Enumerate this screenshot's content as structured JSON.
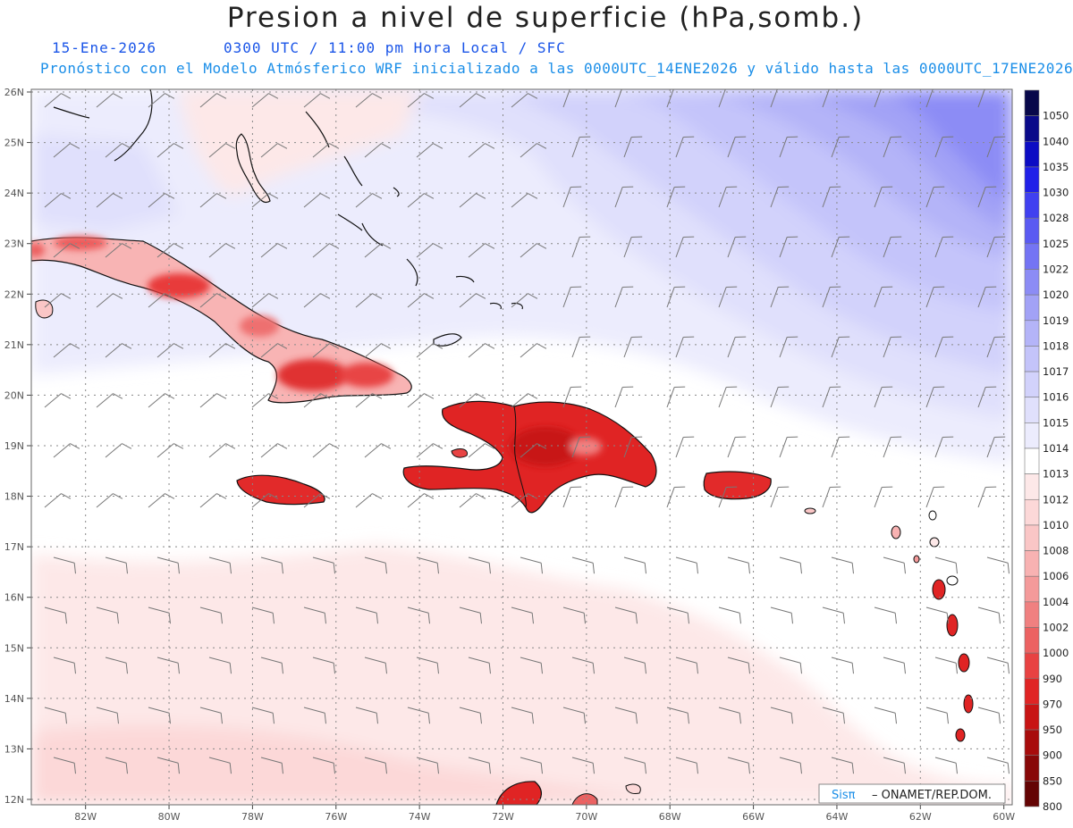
{
  "header": {
    "title": "Presion a nivel de superficie (hPa,somb.)",
    "date": "15-Ene-2026",
    "time": "0300 UTC / 11:00 pm Hora Local / SFC",
    "forecast_line": "Pronóstico con el Modelo Atmósferico WRF inicializado a las 0000UTC_14ENE2026 y válido hasta las  0000UTC_17ENE2026"
  },
  "map": {
    "lat_labels": [
      "26N",
      "25N",
      "24N",
      "23N",
      "22N",
      "21N",
      "20N",
      "19N",
      "18N",
      "17N",
      "16N",
      "15N",
      "14N",
      "13N",
      "12N"
    ],
    "lon_labels": [
      "82W",
      "80W",
      "78W",
      "76W",
      "74W",
      "72W",
      "70W",
      "68W",
      "66W",
      "64W",
      "62W",
      "60W"
    ],
    "lat_values": [
      26,
      25,
      24,
      23,
      22,
      21,
      20,
      19,
      18,
      17,
      16,
      15,
      14,
      13,
      12
    ],
    "lon_values": [
      -82,
      -80,
      -78,
      -76,
      -74,
      -72,
      -70,
      -68,
      -66,
      -64,
      -62,
      -60
    ]
  },
  "colorbar": {
    "labels": [
      "1050",
      "1040",
      "1035",
      "1030",
      "1028",
      "1025",
      "1022",
      "1020",
      "1019",
      "1018",
      "1017",
      "1016",
      "1015",
      "1014",
      "1013",
      "1012",
      "1010",
      "1008",
      "1006",
      "1004",
      "1002",
      "1000",
      "990",
      "970",
      "950",
      "900",
      "850",
      "800"
    ],
    "colors": [
      "#08084a",
      "#0a0a8a",
      "#0c0cc4",
      "#2020e8",
      "#4040f0",
      "#5a5af2",
      "#7474f4",
      "#8c8cf5",
      "#a2a2f6",
      "#b4b4f8",
      "#c4c4fa",
      "#d2d2fb",
      "#e0e0fc",
      "#ececfd",
      "#ffffff",
      "#fde8e8",
      "#fcd8d8",
      "#fac6c6",
      "#f8b2b2",
      "#f49a9a",
      "#f08080",
      "#ec6262",
      "#e84242",
      "#e02424",
      "#c81414",
      "#a80c0c",
      "#880808",
      "#640404"
    ]
  },
  "credit": {
    "brand": "Sisπ",
    "org": "– ONAMET/REP.DOM."
  },
  "colors": {
    "title": "#222222",
    "subtitle_date": "#1a55e8",
    "subtitle_forecast": "#1a8ee8",
    "high_pressure": "#7070f0",
    "low_pressure": "#e02828"
  }
}
